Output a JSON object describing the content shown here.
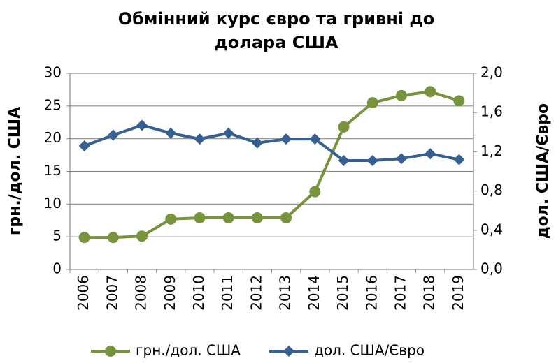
{
  "chart_data": {
    "type": "line",
    "title": [
      "Обмінний курс євро та гривні до",
      "долара США"
    ],
    "y_label": "грн./дол. США",
    "y2_label": "дол. США/Євро",
    "categories": [
      "2006",
      "2007",
      "2008",
      "2009",
      "2010",
      "2011",
      "2012",
      "2013",
      "2014",
      "2015",
      "2016",
      "2017",
      "2018",
      "2019"
    ],
    "series": [
      {
        "name": "грн./дол. США",
        "color": "#77933c",
        "marker": "circle",
        "values": [
          4.9,
          4.9,
          5.1,
          7.7,
          7.9,
          7.9,
          7.9,
          7.9,
          11.9,
          21.8,
          25.5,
          26.6,
          27.2,
          25.8
        ]
      },
      {
        "name": "дол. США/Євро",
        "color": "#376092",
        "marker": "diamond",
        "axis": "y2",
        "values": [
          1.26,
          1.37,
          1.47,
          1.39,
          1.33,
          1.39,
          1.29,
          1.33,
          1.33,
          1.11,
          1.11,
          1.13,
          1.18,
          1.12
        ]
      }
    ],
    "ylim": [
      0,
      30
    ],
    "yticks": [
      0,
      5,
      10,
      15,
      20,
      25,
      30
    ],
    "y2lim": [
      0,
      2
    ],
    "y2ticks": [
      {
        "value": 0,
        "label": "0,0"
      },
      {
        "value": 0.4,
        "label": "0,4"
      },
      {
        "value": 0.8,
        "label": "0,8"
      },
      {
        "value": 1.2,
        "label": "1,2"
      },
      {
        "value": 1.6,
        "label": "1,6"
      },
      {
        "value": 2,
        "label": "2,0"
      }
    ],
    "grid": true,
    "legend": "bottom"
  }
}
